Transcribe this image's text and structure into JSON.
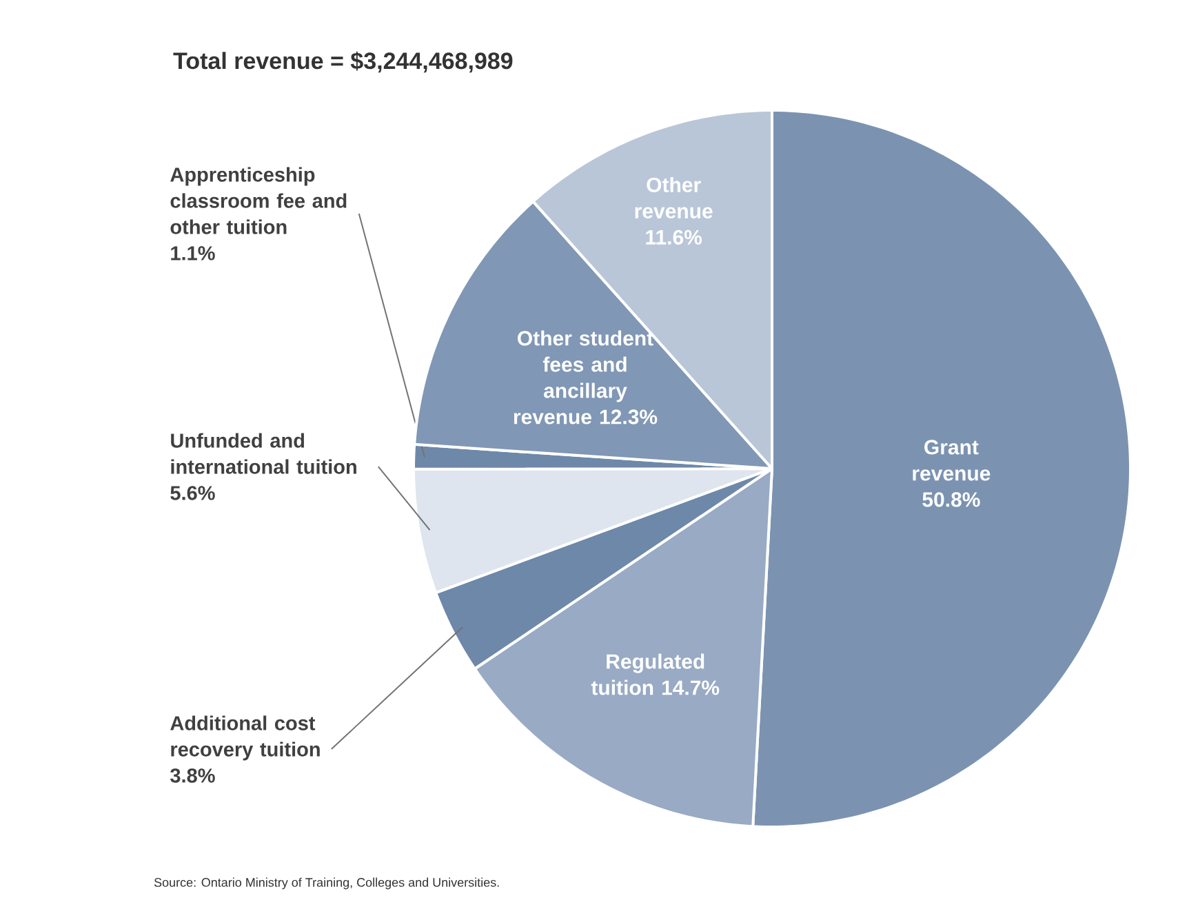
{
  "chart_data": {
    "type": "pie",
    "title": "Total revenue = $3,244,468,989",
    "categories": [
      "Grant revenue",
      "Regulated tuition",
      "Additional cost recovery tuition",
      "Unfunded and international tuition",
      "Apprenticeship classroom fee and other tuition",
      "Other student fees and ancillary revenue",
      "Other revenue"
    ],
    "values": [
      50.8,
      14.7,
      3.8,
      5.6,
      1.1,
      12.3,
      11.6
    ],
    "value_labels": [
      "50.8%",
      "14.7%",
      "3.8%",
      "5.6%",
      "1.1%",
      "12.3%",
      "11.6%"
    ],
    "colors": [
      "#7b93b1",
      "#98aac4",
      "#6e88a9",
      "#dfe5ee",
      "#6e88a9",
      "#8097b5",
      "#b9c6d8"
    ],
    "annotations": [
      "Source:  Ontario Ministry of Training, Colleges and Universities."
    ]
  }
}
